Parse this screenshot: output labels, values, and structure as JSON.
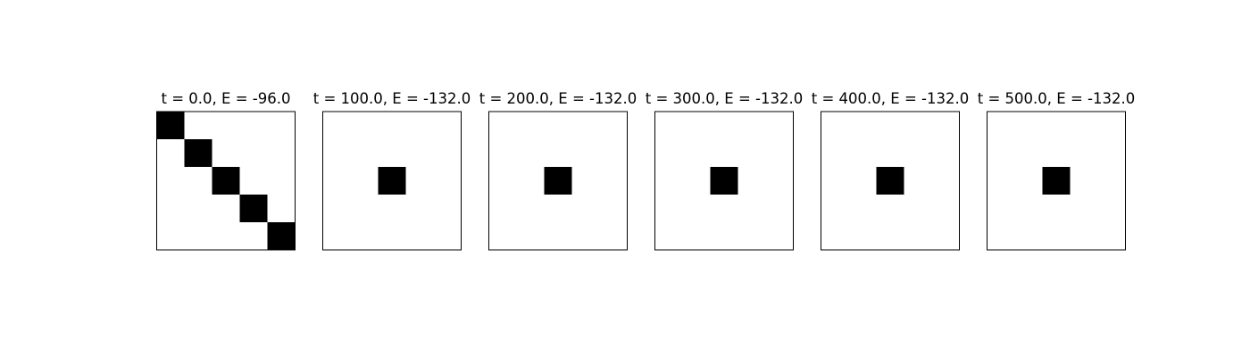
{
  "chart_data": {
    "type": "heatmap",
    "grid_size": 5,
    "colormap": [
      "#ffffff",
      "#000000"
    ],
    "panels": [
      {
        "title": "t = 0.0, E = -96.0",
        "cells": [
          [
            1,
            0,
            0,
            0,
            0
          ],
          [
            0,
            1,
            0,
            0,
            0
          ],
          [
            0,
            0,
            1,
            0,
            0
          ],
          [
            0,
            0,
            0,
            1,
            0
          ],
          [
            0,
            0,
            0,
            0,
            1
          ]
        ]
      },
      {
        "title": "t = 100.0, E = -132.0",
        "cells": [
          [
            0,
            0,
            0,
            0,
            0
          ],
          [
            0,
            0,
            0,
            0,
            0
          ],
          [
            0,
            0,
            1,
            0,
            0
          ],
          [
            0,
            0,
            0,
            0,
            0
          ],
          [
            0,
            0,
            0,
            0,
            0
          ]
        ]
      },
      {
        "title": "t = 200.0, E = -132.0",
        "cells": [
          [
            0,
            0,
            0,
            0,
            0
          ],
          [
            0,
            0,
            0,
            0,
            0
          ],
          [
            0,
            0,
            1,
            0,
            0
          ],
          [
            0,
            0,
            0,
            0,
            0
          ],
          [
            0,
            0,
            0,
            0,
            0
          ]
        ]
      },
      {
        "title": "t = 300.0, E = -132.0",
        "cells": [
          [
            0,
            0,
            0,
            0,
            0
          ],
          [
            0,
            0,
            0,
            0,
            0
          ],
          [
            0,
            0,
            1,
            0,
            0
          ],
          [
            0,
            0,
            0,
            0,
            0
          ],
          [
            0,
            0,
            0,
            0,
            0
          ]
        ]
      },
      {
        "title": "t = 400.0, E = -132.0",
        "cells": [
          [
            0,
            0,
            0,
            0,
            0
          ],
          [
            0,
            0,
            0,
            0,
            0
          ],
          [
            0,
            0,
            1,
            0,
            0
          ],
          [
            0,
            0,
            0,
            0,
            0
          ],
          [
            0,
            0,
            0,
            0,
            0
          ]
        ]
      },
      {
        "title": "t = 500.0, E = -132.0",
        "cells": [
          [
            0,
            0,
            0,
            0,
            0
          ],
          [
            0,
            0,
            0,
            0,
            0
          ],
          [
            0,
            0,
            1,
            0,
            0
          ],
          [
            0,
            0,
            0,
            0,
            0
          ],
          [
            0,
            0,
            0,
            0,
            0
          ]
        ]
      }
    ]
  }
}
